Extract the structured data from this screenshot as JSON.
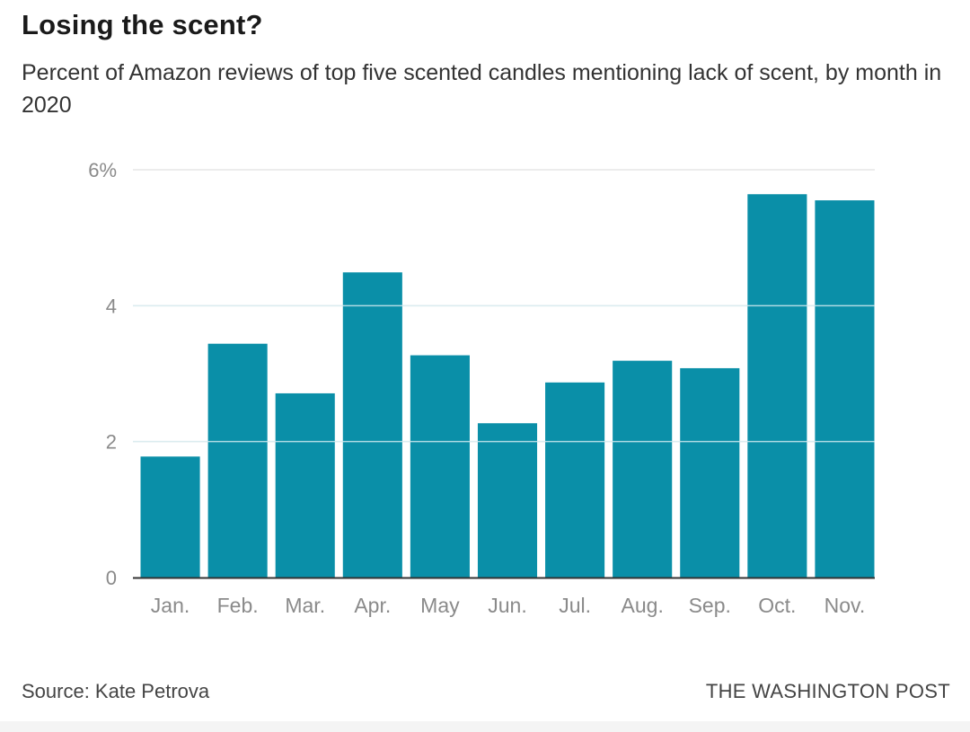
{
  "header": {
    "title": "Losing the scent?",
    "subtitle": "Percent of Amazon reviews of top five scented candles mentioning lack of scent, by month in 2020"
  },
  "footer": {
    "source": "Source: Kate Petrova",
    "credit": "THE WASHINGTON POST"
  },
  "colors": {
    "bar": "#0a8fa8",
    "grid": "#e6e6e6",
    "axis": "#333333"
  },
  "chart_data": {
    "type": "bar",
    "title": "Losing the scent?",
    "subtitle": "Percent of Amazon reviews of top five scented candles mentioning lack of scent, by month in 2020",
    "xlabel": "",
    "ylabel": "",
    "categories": [
      "Jan.",
      "Feb.",
      "Mar.",
      "Apr.",
      "May",
      "Jun.",
      "Jul.",
      "Aug.",
      "Sep.",
      "Oct.",
      "Nov."
    ],
    "values": [
      1.78,
      3.44,
      2.71,
      4.49,
      3.27,
      2.27,
      2.87,
      3.19,
      3.08,
      5.64,
      5.55
    ],
    "ylim": [
      0,
      6
    ],
    "yticks": [
      0,
      2,
      4,
      6
    ],
    "ytick_labels": [
      "0",
      "2",
      "4",
      "6%"
    ],
    "grid": true,
    "legend": "none"
  }
}
